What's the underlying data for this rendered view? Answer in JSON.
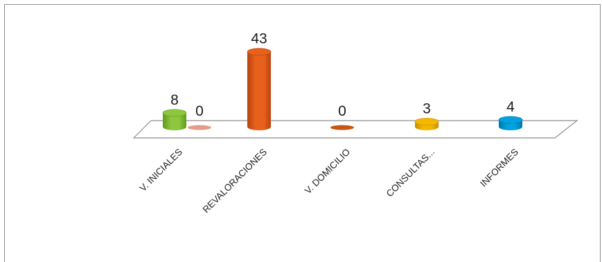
{
  "chart_data": {
    "type": "bar",
    "title": "",
    "xlabel": "",
    "ylabel": "",
    "ylim": [
      0,
      43
    ],
    "grid": false,
    "legend": "none",
    "categories": [
      "V. INICIALES",
      "REVALORACIONES",
      "V. DOMICILIO",
      "CONSULTAS...",
      "INFORMES"
    ],
    "bars": [
      {
        "category_index": 0,
        "value": 8,
        "label": "8",
        "color": "#8dc63f",
        "dark": "#5e9a1c"
      },
      {
        "category_index": 0,
        "value": 0,
        "label": "0",
        "color": "#e79a86",
        "dark": "#c7705c"
      },
      {
        "category_index": 1,
        "value": 43,
        "label": "43",
        "color": "#e8611c",
        "dark": "#b8430c"
      },
      {
        "category_index": 2,
        "value": 0,
        "label": "0",
        "color": "#c95512",
        "dark": "#9a3b08"
      },
      {
        "category_index": 3,
        "value": 3,
        "label": "3",
        "color": "#f5b800",
        "dark": "#c48f00"
      },
      {
        "category_index": 4,
        "value": 4,
        "label": "4",
        "color": "#00a2e0",
        "dark": "#0077aa"
      }
    ]
  }
}
